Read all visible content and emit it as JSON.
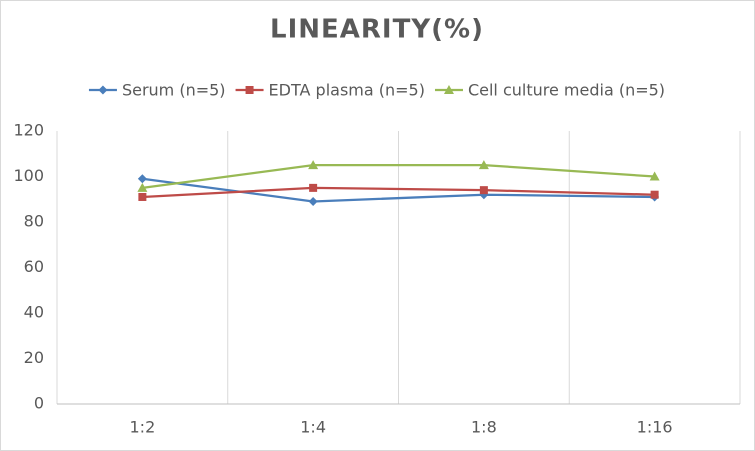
{
  "chart_data": {
    "type": "line",
    "title": "LINEARITY(%)",
    "categories": [
      "1:2",
      "1:4",
      "1:8",
      "1:16"
    ],
    "series": [
      {
        "name": "Serum (n=5)",
        "color": "#4a7ebb",
        "marker": "diamond",
        "values": [
          99,
          89,
          92,
          91
        ]
      },
      {
        "name": "EDTA plasma (n=5)",
        "color": "#be4b48",
        "marker": "square",
        "values": [
          91,
          95,
          94,
          92
        ]
      },
      {
        "name": "Cell culture media (n=5)",
        "color": "#98b954",
        "marker": "triangle",
        "values": [
          95,
          105,
          105,
          100
        ]
      }
    ],
    "ylim": [
      0,
      120
    ],
    "yticks": [
      0,
      20,
      40,
      60,
      80,
      100,
      120
    ],
    "legend": "top"
  }
}
